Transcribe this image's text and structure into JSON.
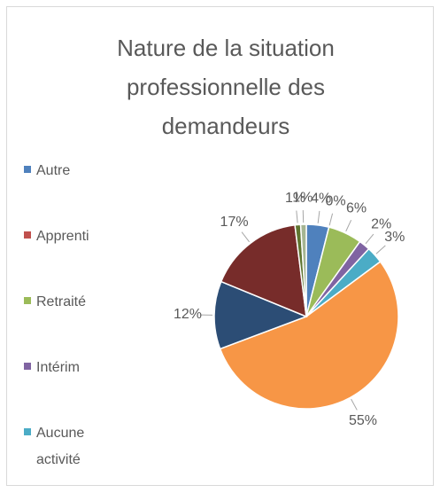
{
  "chart_data": {
    "type": "pie",
    "title": "Nature de la situation professionnelle des demandeurs",
    "categories": [
      "Autre",
      "Apprenti",
      "Retraité",
      "Intérim",
      "Aucune activité",
      null,
      null,
      null,
      null,
      null
    ],
    "values": [
      4,
      0,
      6,
      2,
      3,
      55,
      12,
      17,
      1,
      1
    ],
    "value_labels": [
      "4%",
      "0%",
      "6%",
      "2%",
      "3%",
      "55%",
      "12%",
      "17%",
      "1%",
      "1%"
    ],
    "colors": [
      "#4F81BD",
      "#C0504D",
      "#9BBB59",
      "#8064A2",
      "#4BACC6",
      "#F79646",
      "#2C4D75",
      "#772C2A",
      "#5F7530",
      "#A5B592"
    ],
    "legend": "left"
  }
}
